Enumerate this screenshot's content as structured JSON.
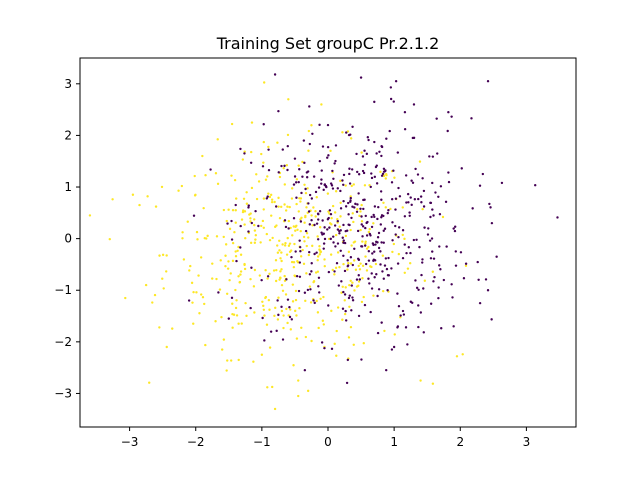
{
  "chart_data": {
    "type": "scatter",
    "title": "Training Set groupC Pr.2.1.2",
    "xlabel": "",
    "ylabel": "",
    "xlim": [
      -3.75,
      3.75
    ],
    "ylim": [
      -3.65,
      3.5
    ],
    "xticks": [
      -3,
      -2,
      -1,
      0,
      1,
      2,
      3
    ],
    "yticks": [
      -3,
      -2,
      -1,
      0,
      1,
      2,
      3
    ],
    "grid": false,
    "point_count_per_series": 500,
    "series": [
      {
        "class": 0,
        "color": "#440154",
        "center": [
          0.45,
          0.2
        ],
        "spread": [
          0.85,
          1.05
        ],
        "points": [
          [
            -0.8,
            3.18
          ],
          [
            0.5,
            3.12
          ],
          [
            1.03,
            3.05
          ],
          [
            2.42,
            3.05
          ],
          [
            0.95,
            2.93
          ],
          [
            0.7,
            2.65
          ],
          [
            1.3,
            2.6
          ],
          [
            1.82,
            2.45
          ],
          [
            -0.75,
            2.47
          ],
          [
            0.0,
            2.2
          ],
          [
            3.47,
            0.41
          ],
          [
            2.63,
            1.08
          ],
          [
            2.55,
            -0.35
          ],
          [
            2.42,
            -1.0
          ],
          [
            2.3,
            -1.25
          ],
          [
            -2.1,
            -1.2
          ],
          [
            -1.5,
            -1.55
          ],
          [
            0.3,
            -2.35
          ],
          [
            -0.35,
            -2.55
          ],
          [
            1.2,
            -2.05
          ],
          [
            1.05,
            -1.72
          ],
          [
            1.9,
            -1.7
          ],
          [
            1.0,
            -2.1
          ],
          [
            -0.5,
            1.55
          ],
          [
            -0.3,
            1.3
          ]
        ]
      },
      {
        "class": 1,
        "color": "#fde725",
        "center": [
          -0.55,
          -0.25
        ],
        "spread": [
          0.95,
          1.0
        ],
        "points": [
          [
            -3.6,
            0.45
          ],
          [
            -2.95,
            0.85
          ],
          [
            -2.85,
            0.65
          ],
          [
            -2.75,
            -0.9
          ],
          [
            -2.55,
            -1.72
          ],
          [
            -2.6,
            0.62
          ],
          [
            -0.8,
            -3.3
          ],
          [
            -0.45,
            -3.05
          ],
          [
            -0.3,
            -2.95
          ],
          [
            -0.45,
            -2.75
          ],
          [
            1.4,
            -2.75
          ],
          [
            1.95,
            -2.28
          ],
          [
            -0.6,
            2.7
          ],
          [
            -0.1,
            2.6
          ],
          [
            -1.9,
            1.6
          ],
          [
            -1.45,
            2.22
          ],
          [
            -1.6,
            -2.15
          ],
          [
            -1.35,
            -2.35
          ],
          [
            -1.0,
            -2.25
          ],
          [
            0.05,
            -1.4
          ]
        ]
      }
    ]
  }
}
